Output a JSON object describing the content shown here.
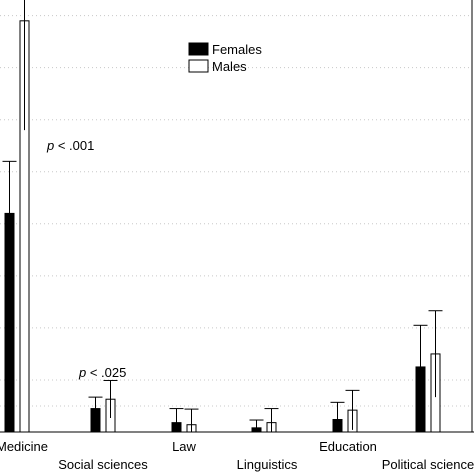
{
  "chart_data": {
    "type": "bar",
    "title": "",
    "xlabel": "",
    "ylabel": "",
    "categories": [
      "Medicine",
      "Social sciences",
      "Law",
      "Linguistics",
      "Education",
      "Political science"
    ],
    "series": [
      {
        "name": "Females",
        "color": "#000000",
        "values": [
          42.0,
          4.5,
          1.8,
          0.8,
          2.4,
          12.5
        ],
        "errors": [
          10.0,
          2.2,
          2.7,
          1.5,
          3.3,
          8.0
        ]
      },
      {
        "name": "Males",
        "color": "#ffffff",
        "values": [
          79.0,
          6.3,
          1.4,
          1.8,
          4.2,
          15.0
        ],
        "errors": [
          21.0,
          3.6,
          3.0,
          2.7,
          3.8,
          8.3
        ]
      }
    ],
    "ylim": [
      0,
      83
    ],
    "grid": true,
    "legend": "top-center",
    "annotations": [
      {
        "text": "p < .001",
        "category": "Medicine"
      },
      {
        "text": "p < .025",
        "category": "Social sciences"
      }
    ]
  }
}
